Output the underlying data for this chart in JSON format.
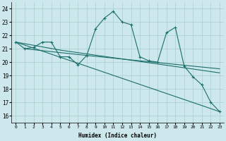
{
  "xlabel": "Humidex (Indice chaleur)",
  "xlim": [
    -0.5,
    23.5
  ],
  "ylim": [
    15.5,
    24.5
  ],
  "yticks": [
    16,
    17,
    18,
    19,
    20,
    21,
    22,
    23,
    24
  ],
  "xticks": [
    0,
    1,
    2,
    3,
    4,
    5,
    6,
    7,
    8,
    9,
    10,
    11,
    12,
    13,
    14,
    15,
    16,
    17,
    18,
    19,
    20,
    21,
    22,
    23
  ],
  "bg_color": "#cce8ec",
  "grid_color": "#aacccc",
  "line_color": "#1a6e6a",
  "lines": [
    {
      "x": [
        0,
        1,
        2,
        3,
        4,
        5,
        6,
        7,
        8,
        9,
        10,
        11,
        12,
        13,
        14,
        15,
        16,
        17,
        18,
        19,
        20,
        21,
        22,
        23
      ],
      "y": [
        21.5,
        21.0,
        21.1,
        21.5,
        21.5,
        20.4,
        20.4,
        19.8,
        20.5,
        22.5,
        23.3,
        23.8,
        23.0,
        22.8,
        20.4,
        20.1,
        20.0,
        22.2,
        22.6,
        19.7,
        18.9,
        18.3,
        17.0,
        16.3
      ],
      "marker": true,
      "linestyle": "-"
    },
    {
      "x": [
        0,
        23
      ],
      "y": [
        21.5,
        16.3
      ],
      "marker": false,
      "linestyle": "-"
    },
    {
      "x": [
        1,
        8,
        23
      ],
      "y": [
        21.0,
        20.5,
        19.5
      ],
      "marker": false,
      "linestyle": "-"
    },
    {
      "x": [
        0,
        5,
        23
      ],
      "y": [
        21.5,
        20.9,
        19.2
      ],
      "marker": false,
      "linestyle": "-"
    }
  ]
}
